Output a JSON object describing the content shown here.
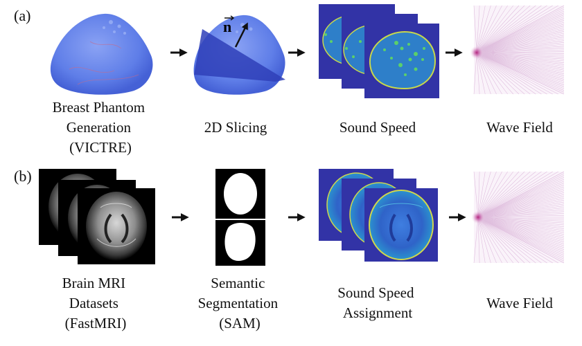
{
  "panels": [
    {
      "tag": "(a)",
      "steps": [
        {
          "caption": [
            "Breast Phantom",
            "Generation",
            "(VICTRE)"
          ]
        },
        {
          "caption": [
            "2D Slicing"
          ],
          "vector_label": "n"
        },
        {
          "caption": [
            "Sound Speed"
          ]
        },
        {
          "caption": [
            "Wave Field"
          ]
        }
      ]
    },
    {
      "tag": "(b)",
      "steps": [
        {
          "caption": [
            "Brain MRI",
            "Datasets",
            "(FastMRI)"
          ]
        },
        {
          "caption": [
            "Semantic",
            "Segmentation",
            "(SAM)"
          ]
        },
        {
          "caption": [
            "Sound Speed",
            "Assignment"
          ]
        },
        {
          "caption": [
            "Wave Field"
          ]
        }
      ]
    }
  ],
  "colors": {
    "phantom_blue": "#5f7ee8",
    "sound_speed_bg": "#3233a6",
    "sound_speed_tissue": "#2e7fc9",
    "sound_speed_gland": "#5bd06a",
    "wave_field_source": "#b2247c",
    "wave_field_rays": "#c992c6",
    "arrow": "#111111"
  }
}
